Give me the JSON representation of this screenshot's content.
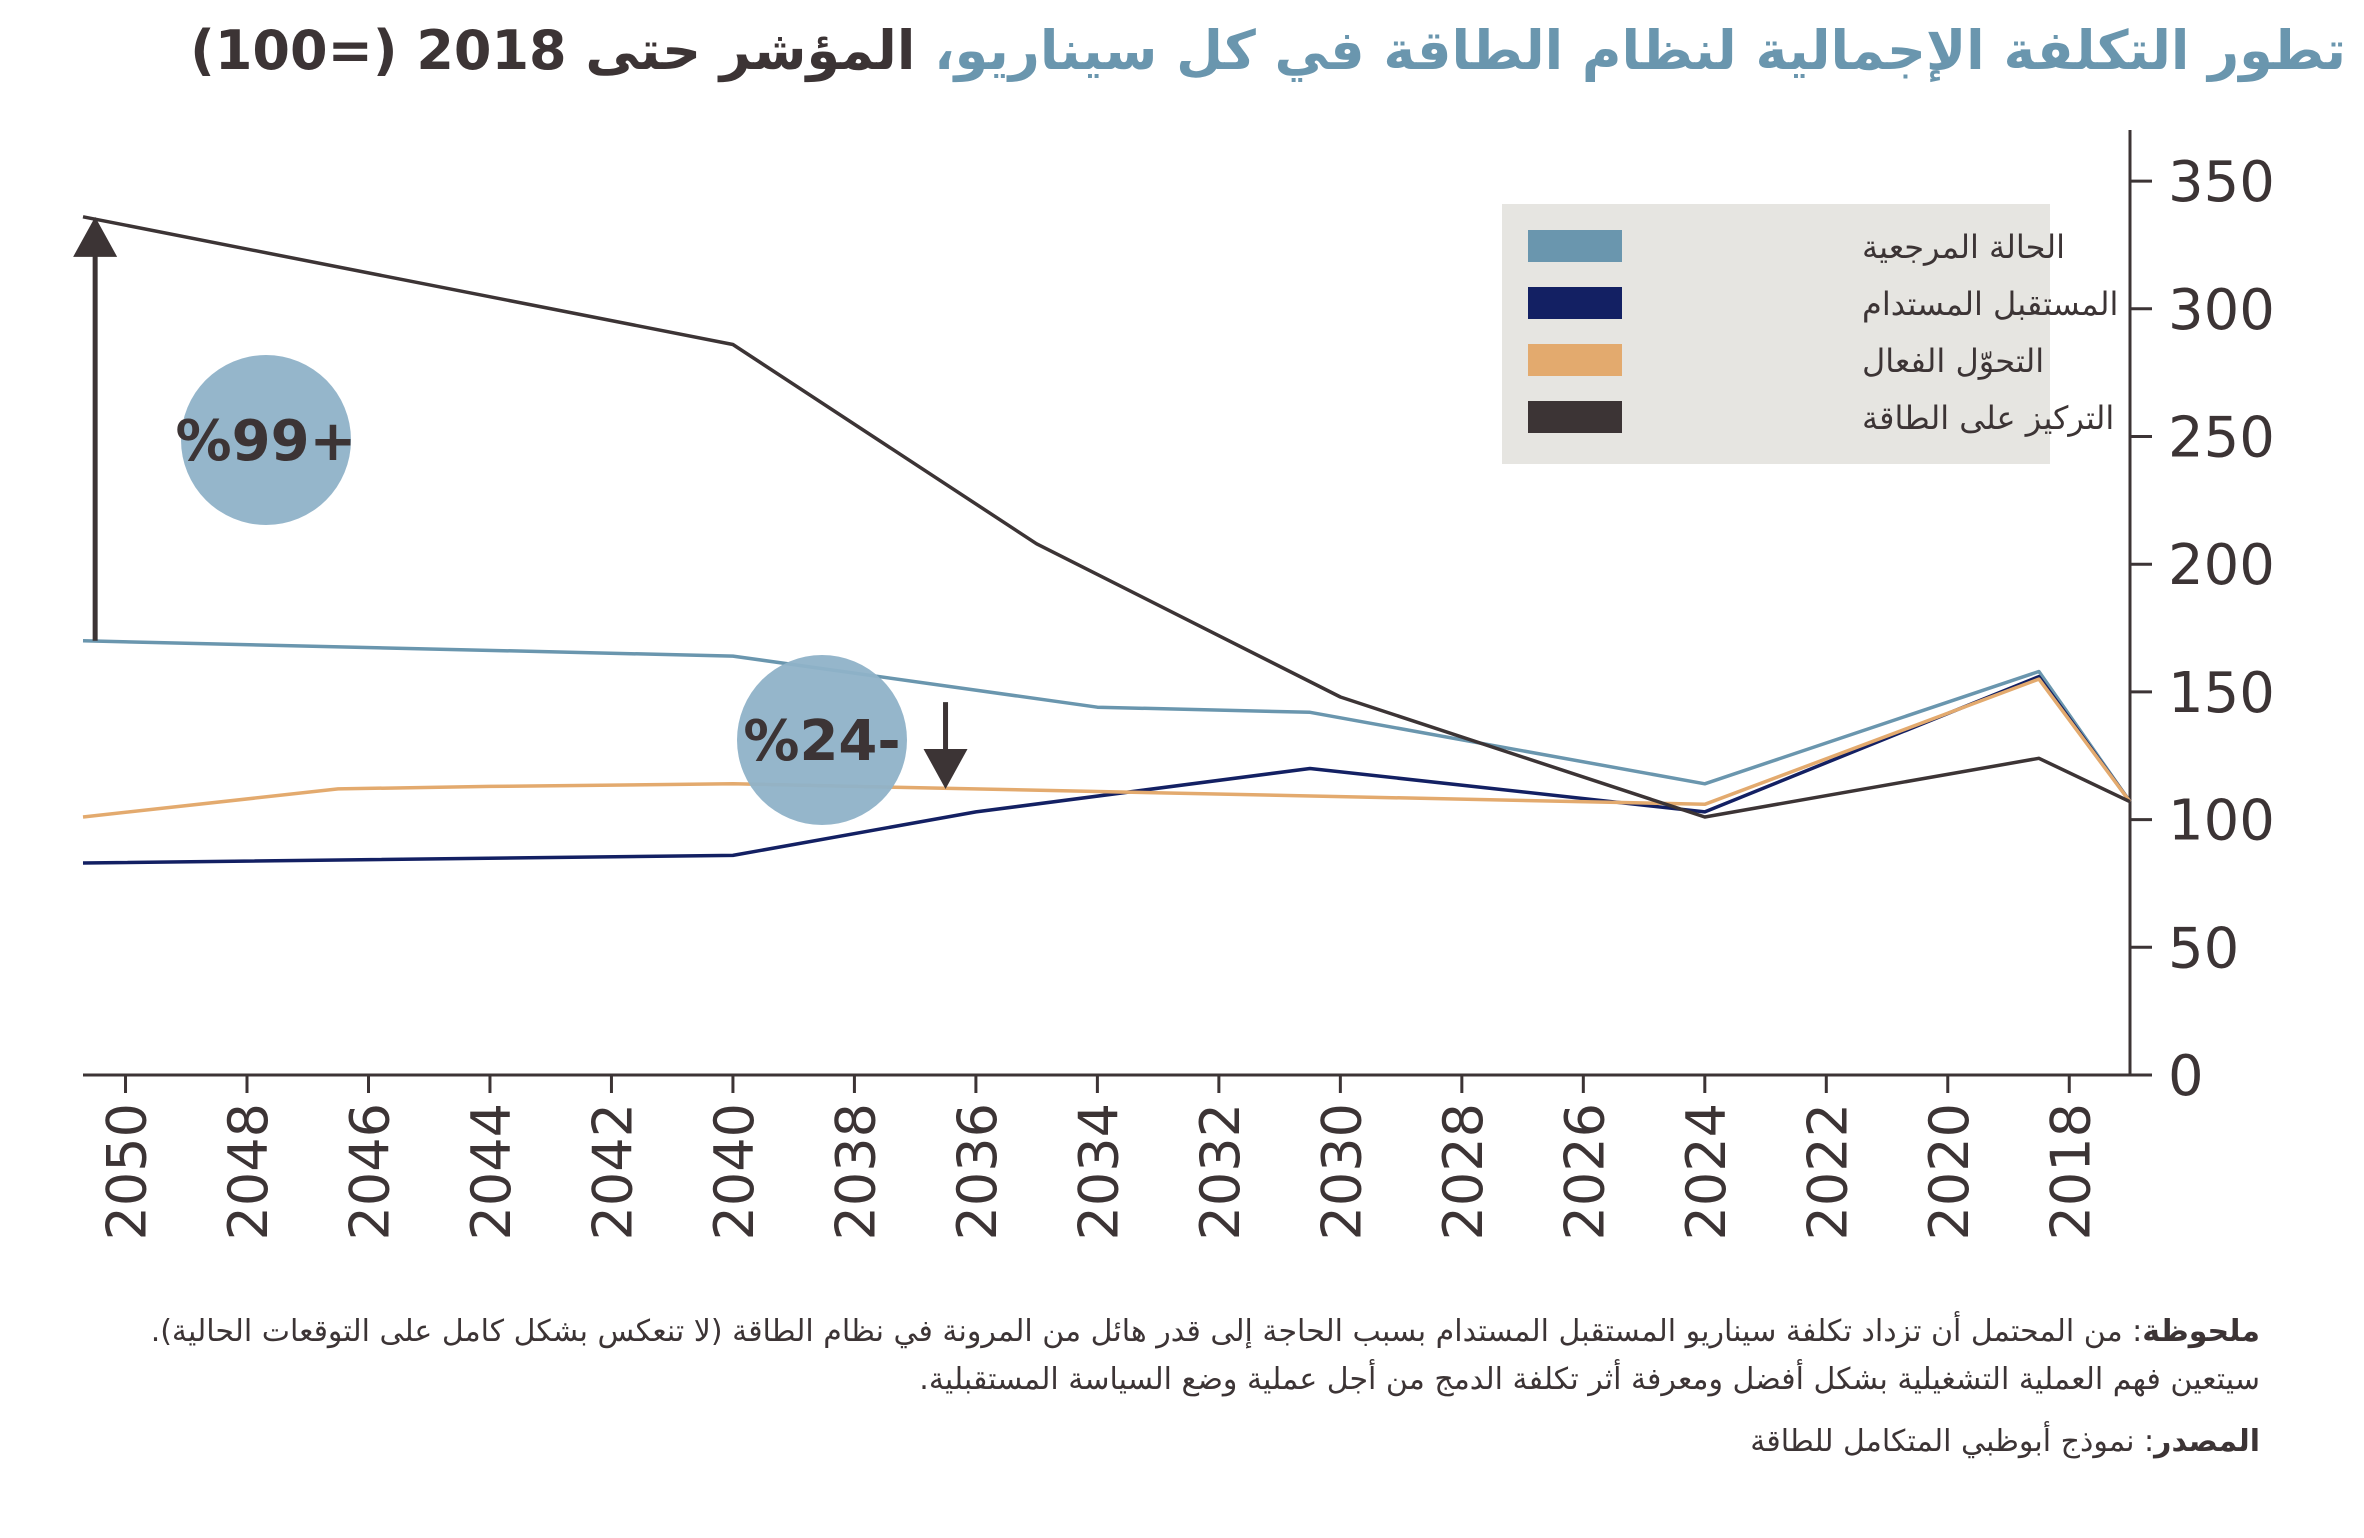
{
  "title": {
    "part1": "تطور التكلفة الإجمالية لنظام الطاقة في كل سيناريو،",
    "part2": "المؤشر حتى 2018 (=100)"
  },
  "notes": {
    "note_label": "ملحوظة",
    "note_text": ": من المحتمل أن تزداد تكلفة سيناريو المستقبل المستدام بسبب الحاجة إلى قدر هائل من المرونة في نظام الطاقة (لا تنعكس بشكل كامل على التوقعات الحالية). سيتعين فهم العملية التشغيلية بشكل أفضل ومعرفة أثر تكلفة الدمج من أجل عملية وضع السياسة المستقبلية.",
    "source_label": "المصدر",
    "source_text": ": نموذج أبوظبي المتكامل للطاقة"
  },
  "chart_data": {
    "type": "line",
    "x_axis": {
      "ticks": [
        "2018",
        "2020",
        "2022",
        "2024",
        "2026",
        "2028",
        "2030",
        "2032",
        "2034",
        "2036",
        "2038",
        "2040",
        "2042",
        "2044",
        "2046",
        "2048",
        "2050"
      ],
      "direction": "right-to-left",
      "range": [
        2017,
        2050.7
      ]
    },
    "y_axis": {
      "ticks": [
        "0",
        "50",
        "100",
        "150",
        "200",
        "250",
        "300",
        "350"
      ],
      "range": [
        0,
        370
      ],
      "position": "right"
    },
    "series": [
      {
        "name": "الحالة المرجعية",
        "color": "#6a96ae",
        "points": [
          [
            2017,
            107
          ],
          [
            2018.5,
            158
          ],
          [
            2024,
            114
          ],
          [
            2030.5,
            142
          ],
          [
            2034,
            144
          ],
          [
            2040,
            164
          ],
          [
            2050.7,
            170
          ]
        ]
      },
      {
        "name": "المستقبل المستدام",
        "color": "#132063",
        "points": [
          [
            2017,
            107
          ],
          [
            2018.5,
            156
          ],
          [
            2024,
            103
          ],
          [
            2030.5,
            120
          ],
          [
            2036,
            103
          ],
          [
            2040,
            86
          ],
          [
            2050.7,
            83
          ]
        ]
      },
      {
        "name": "التحوّل الفعال",
        "color": "#e3aa6e",
        "points": [
          [
            2017,
            107
          ],
          [
            2018.5,
            155
          ],
          [
            2024,
            106
          ],
          [
            2030,
            109
          ],
          [
            2040,
            114
          ],
          [
            2044,
            113
          ],
          [
            2046.5,
            112
          ],
          [
            2050.7,
            101
          ]
        ]
      },
      {
        "name": "التركيز على الطاقة",
        "color": "#3c3435",
        "points": [
          [
            2017,
            107
          ],
          [
            2018.5,
            124
          ],
          [
            2024,
            101
          ],
          [
            2030,
            148
          ],
          [
            2035,
            208
          ],
          [
            2040,
            286
          ],
          [
            2050.7,
            336
          ]
        ]
      }
    ],
    "legend": {
      "placement": "top-right"
    },
    "annotations": [
      {
        "label": "%99+",
        "type": "up-arrow",
        "x": 2050.5,
        "from": 170,
        "to": 336
      },
      {
        "label": "%24-",
        "type": "down-arrow",
        "x": 2036.5,
        "from": 146,
        "to": 112
      }
    ],
    "grid": false
  }
}
